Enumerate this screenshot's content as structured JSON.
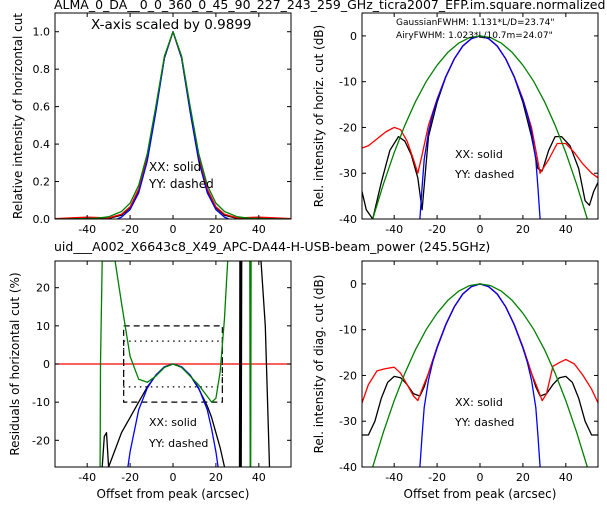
{
  "figure": {
    "title": "ALMA_0_DA__0_0_360_0_45_90_227_243_259_GHz_ticra2007_EFP.im.square.normalized",
    "subtitle": "uid___A002_X6643c8_X49_APC-DA44-H-USB-beam_power (245.5GHz)",
    "subtitle_color": "#ff0000"
  },
  "chart_data": [
    {
      "id": "top-left",
      "type": "line",
      "ylabel": "Relative intensity of horizontal cut",
      "xlabel": "",
      "xlim": [
        -55,
        55
      ],
      "ylim": [
        0,
        1.1
      ],
      "xticks": [
        -40,
        -20,
        0,
        20,
        40
      ],
      "yticks": [
        0.0,
        0.2,
        0.4,
        0.6,
        0.8,
        1.0
      ],
      "ytick_labels": [
        "0.0",
        "0.2",
        "0.4",
        "0.6",
        "0.8",
        "1.0"
      ],
      "annotations": [
        "X-axis scaled by 0.9899",
        "XX: solid",
        "YY: dashed"
      ],
      "series": [
        {
          "color": "#000000",
          "x": [
            -55,
            -48,
            -40,
            -30,
            -24,
            -20,
            -16,
            -12,
            -8,
            -4,
            0,
            4,
            8,
            12,
            16,
            20,
            24,
            30,
            40,
            48,
            55
          ],
          "y": [
            0.0,
            0.003,
            0.006,
            0.003,
            0.02,
            0.06,
            0.15,
            0.32,
            0.58,
            0.86,
            1.0,
            0.86,
            0.58,
            0.32,
            0.15,
            0.06,
            0.02,
            0.003,
            0.006,
            0.003,
            0.0
          ]
        },
        {
          "color": "#ff0000",
          "x": [
            -55,
            -48,
            -40,
            -30,
            -24,
            -20,
            -16,
            -12,
            -8,
            -4,
            0,
            4,
            8,
            12,
            16,
            20,
            24,
            30,
            40,
            48,
            55
          ],
          "y": [
            0.002,
            0.006,
            0.01,
            0.006,
            0.025,
            0.065,
            0.16,
            0.33,
            0.59,
            0.86,
            1.0,
            0.86,
            0.59,
            0.33,
            0.16,
            0.065,
            0.025,
            0.006,
            0.01,
            0.006,
            0.002
          ]
        },
        {
          "color": "#0000ff",
          "x": [
            -26,
            -24,
            -20,
            -16,
            -12,
            -8,
            -4,
            0,
            4,
            8,
            12,
            16,
            20,
            24,
            26
          ],
          "y": [
            0.0,
            0.01,
            0.05,
            0.14,
            0.31,
            0.57,
            0.86,
            1.0,
            0.86,
            0.57,
            0.31,
            0.14,
            0.05,
            0.01,
            0.0
          ]
        },
        {
          "color": "#008000",
          "x": [
            -55,
            -44,
            -36,
            -30,
            -24,
            -20,
            -16,
            -12,
            -8,
            -4,
            0,
            4,
            8,
            12,
            16,
            20,
            24,
            30,
            36,
            44,
            55
          ],
          "y": [
            0.0,
            0.001,
            0.004,
            0.012,
            0.04,
            0.085,
            0.18,
            0.35,
            0.6,
            0.87,
            1.0,
            0.87,
            0.6,
            0.35,
            0.18,
            0.085,
            0.04,
            0.012,
            0.004,
            0.001,
            0.0
          ]
        }
      ]
    },
    {
      "id": "top-right",
      "type": "line",
      "ylabel": "Rel. intensity of horiz. cut (dB)",
      "xlabel": "",
      "xlim": [
        -55,
        55
      ],
      "ylim": [
        -40,
        5
      ],
      "xticks": [
        -40,
        -20,
        0,
        20,
        40
      ],
      "yticks": [
        0,
        -10,
        -20,
        -30,
        -40
      ],
      "annotations": [
        "XX: solid",
        "YY: dashed"
      ],
      "legend_texts": [
        {
          "text": "GaussianFWHM: 1.131*L/D=23.74\"",
          "color": "#008000"
        },
        {
          "text": "AiryFWHM: 1.023*L/10.7m=24.07\"",
          "color": "#0000ff"
        }
      ],
      "series": [
        {
          "color": "#000000",
          "x": [
            -55,
            -53,
            -50,
            -46,
            -42,
            -38,
            -35,
            -32,
            -29,
            -27,
            -24,
            -20,
            -16,
            -12,
            -8,
            -4,
            0,
            4,
            8,
            12,
            16,
            20,
            24,
            27,
            29,
            32,
            35,
            38,
            42,
            46,
            49,
            51,
            53,
            55
          ],
          "y": [
            -34,
            -38,
            -40,
            -32,
            -25,
            -22,
            -23,
            -26,
            -31,
            -38,
            -22,
            -14.5,
            -9,
            -5,
            -2.2,
            -0.6,
            0,
            -0.6,
            -2.2,
            -5,
            -9,
            -14.5,
            -22,
            -29,
            -29.5,
            -25,
            -22,
            -22,
            -24,
            -29,
            -36,
            -37,
            -34,
            -32
          ]
        },
        {
          "color": "#ff0000",
          "x": [
            -55,
            -52,
            -48,
            -44,
            -40,
            -37,
            -34,
            -31,
            -29,
            -27,
            -24,
            -20,
            -16,
            -12,
            -8,
            -4,
            0,
            4,
            8,
            12,
            16,
            20,
            24,
            26,
            28,
            32,
            36,
            40,
            44,
            48,
            52,
            55
          ],
          "y": [
            -24.5,
            -24,
            -22.5,
            -21,
            -20,
            -20.5,
            -23,
            -27,
            -30,
            -26,
            -19.5,
            -13.8,
            -8.9,
            -5,
            -2.2,
            -0.6,
            0,
            -0.6,
            -2.2,
            -5,
            -8.9,
            -13.8,
            -20,
            -25,
            -30,
            -27,
            -23.5,
            -23.5,
            -25.5,
            -28,
            -30,
            -31
          ]
        },
        {
          "color": "#0000ff",
          "x": [
            -28,
            -27,
            -26,
            -24,
            -22,
            -20,
            -16,
            -12,
            -8,
            -4,
            0,
            4,
            8,
            12,
            16,
            20,
            22,
            24,
            26,
            27,
            28
          ],
          "y": [
            -40,
            -33,
            -27,
            -21,
            -17,
            -14,
            -9,
            -5,
            -2.2,
            -0.6,
            0,
            -0.6,
            -2.2,
            -5,
            -9,
            -14,
            -17,
            -21,
            -27,
            -33,
            -40
          ]
        },
        {
          "color": "#008000",
          "x": [
            -50,
            -45,
            -40,
            -35,
            -30,
            -25,
            -20,
            -15,
            -10,
            -5,
            0,
            5,
            10,
            15,
            20,
            25,
            30,
            35,
            40,
            45,
            50
          ],
          "y": [
            -40,
            -32.3,
            -25.5,
            -19.5,
            -14.3,
            -9.9,
            -6.4,
            -3.6,
            -1.6,
            -0.4,
            0,
            -0.4,
            -1.6,
            -3.6,
            -6.4,
            -9.9,
            -14.3,
            -19.5,
            -25.5,
            -32.3,
            -40
          ]
        }
      ]
    },
    {
      "id": "bottom-left",
      "type": "line",
      "ylabel": "Residuals of horizontal cut (%)",
      "xlabel": "Offset from peak (arcsec)",
      "xlim": [
        -55,
        55
      ],
      "ylim": [
        -27,
        27
      ],
      "xticks": [
        -40,
        -20,
        0,
        20,
        40
      ],
      "yticks": [
        20,
        10,
        0,
        -10,
        -20
      ],
      "annotations": [
        "XX: solid",
        "YY: dashed"
      ],
      "hline": {
        "y": 0,
        "color": "#ff0000"
      },
      "box_dashed": {
        "x": [
          -23,
          23
        ],
        "y": [
          -10,
          10
        ]
      },
      "box_dotted": {
        "x": [
          -23,
          23
        ],
        "y": [
          -6,
          6
        ]
      },
      "series": [
        {
          "color": "#000000",
          "x": [
            -33,
            -32,
            -31,
            -30,
            -28,
            -24,
            -20,
            -16,
            -12,
            -8,
            -4,
            0,
            4,
            8,
            12,
            16,
            18,
            20,
            22,
            24
          ],
          "y": [
            -27,
            -19,
            -18,
            -27,
            -24,
            -18,
            -14,
            -10,
            -6,
            -3,
            -0.8,
            0,
            -0.8,
            -3,
            -6.5,
            -11,
            -14,
            -18,
            -22,
            -27
          ]
        },
        {
          "color": "#000000",
          "x": [
            31,
            31.2,
            31.4,
            31.6,
            31.8,
            32
          ],
          "y": [
            -27,
            27,
            27,
            -27,
            -27,
            27
          ]
        },
        {
          "color": "#000000",
          "x": [
            40,
            41,
            43,
            45
          ],
          "y": [
            27,
            27,
            10,
            -27
          ]
        },
        {
          "color": "#0000ff",
          "x": [
            -21,
            -20,
            -16,
            -12,
            -8,
            -4,
            0,
            4,
            8,
            12,
            16,
            18,
            20,
            21
          ],
          "y": [
            -27,
            -23,
            -12,
            -6.3,
            -2.9,
            -0.7,
            0,
            -0.7,
            -2.9,
            -6.3,
            -12,
            -17,
            -23,
            -27
          ]
        },
        {
          "color": "#008000",
          "x": [
            -34,
            -33.8,
            -33,
            -32,
            -30,
            -27,
            -24,
            -20,
            -16,
            -12,
            -8,
            -4,
            0,
            4,
            8,
            12,
            16,
            18,
            20,
            22,
            24,
            25,
            25.5
          ],
          "y": [
            -27,
            0,
            27,
            27,
            27,
            27,
            16,
            2,
            -4,
            -4.8,
            -3.2,
            -0.9,
            0,
            -0.9,
            -3.2,
            -5.5,
            -8.5,
            -10,
            -9,
            -2,
            12,
            22,
            27
          ]
        },
        {
          "color": "#008000",
          "x": [
            35.8,
            36,
            36.2,
            36.4
          ],
          "y": [
            27,
            -27,
            -27,
            27
          ]
        }
      ]
    },
    {
      "id": "bottom-right",
      "type": "line",
      "ylabel": "Rel. intensity of diag. cut (dB)",
      "xlabel": "Offset from peak (arcsec)",
      "xlim": [
        -55,
        55
      ],
      "ylim": [
        -40,
        5
      ],
      "xticks": [
        -40,
        -20,
        0,
        20,
        40
      ],
      "yticks": [
        0,
        -10,
        -20,
        -30,
        -40
      ],
      "annotations": [
        "XX: solid",
        "YY: dashed"
      ],
      "series": [
        {
          "color": "#000000",
          "x": [
            -55,
            -52,
            -49,
            -46,
            -43,
            -40,
            -37,
            -34,
            -31,
            -28,
            -26,
            -24,
            -20,
            -16,
            -12,
            -8,
            -4,
            0,
            4,
            8,
            12,
            16,
            20,
            24,
            26,
            28,
            31,
            34,
            37,
            40,
            43,
            46,
            49,
            52,
            55
          ],
          "y": [
            -33,
            -33,
            -30,
            -25,
            -21.5,
            -20.2,
            -20.5,
            -22,
            -24,
            -24.5,
            -22.5,
            -19.5,
            -13.8,
            -8.9,
            -5,
            -2.2,
            -0.6,
            0,
            -0.6,
            -2.2,
            -5,
            -8.9,
            -13.8,
            -19.5,
            -22.5,
            -24.5,
            -24,
            -22,
            -20.5,
            -20.2,
            -21.5,
            -25,
            -30,
            -33,
            -33
          ]
        },
        {
          "color": "#ff0000",
          "x": [
            -55,
            -52,
            -48,
            -44,
            -40,
            -37,
            -34,
            -31,
            -29,
            -27,
            -24,
            -20,
            -16,
            -12,
            -8,
            -4,
            0,
            4,
            8,
            12,
            16,
            20,
            24,
            27,
            29,
            31,
            34,
            37,
            40,
            44,
            48,
            52,
            55
          ],
          "y": [
            -26,
            -22,
            -19,
            -18.5,
            -18.2,
            -19.5,
            -22,
            -24.5,
            -25.5,
            -23,
            -19.5,
            -13.8,
            -8.9,
            -5,
            -2.2,
            -0.6,
            0,
            -0.6,
            -2.2,
            -5,
            -8.9,
            -13.8,
            -19.5,
            -23,
            -25.5,
            -24,
            -18,
            -17.2,
            -16.5,
            -17.5,
            -20,
            -23,
            -26
          ]
        },
        {
          "color": "#0000ff",
          "x": [
            -28,
            -27,
            -26,
            -24,
            -22,
            -20,
            -16,
            -12,
            -8,
            -4,
            0,
            4,
            8,
            12,
            16,
            20,
            22,
            24,
            26,
            27,
            28
          ],
          "y": [
            -40,
            -33,
            -27,
            -21,
            -17,
            -14,
            -9,
            -5,
            -2.2,
            -0.6,
            0,
            -0.6,
            -2.2,
            -5,
            -9,
            -14,
            -17,
            -21,
            -27,
            -33,
            -40
          ]
        },
        {
          "color": "#008000",
          "x": [
            -50,
            -45,
            -40,
            -35,
            -30,
            -25,
            -20,
            -15,
            -10,
            -5,
            0,
            5,
            10,
            15,
            20,
            25,
            30,
            35,
            40,
            45,
            50
          ],
          "y": [
            -40,
            -32.3,
            -25.5,
            -19.5,
            -14.3,
            -9.9,
            -6.4,
            -3.6,
            -1.6,
            -0.4,
            0,
            -0.4,
            -1.6,
            -3.6,
            -6.4,
            -9.9,
            -14.3,
            -19.5,
            -25.5,
            -32.3,
            -40
          ]
        }
      ]
    }
  ]
}
